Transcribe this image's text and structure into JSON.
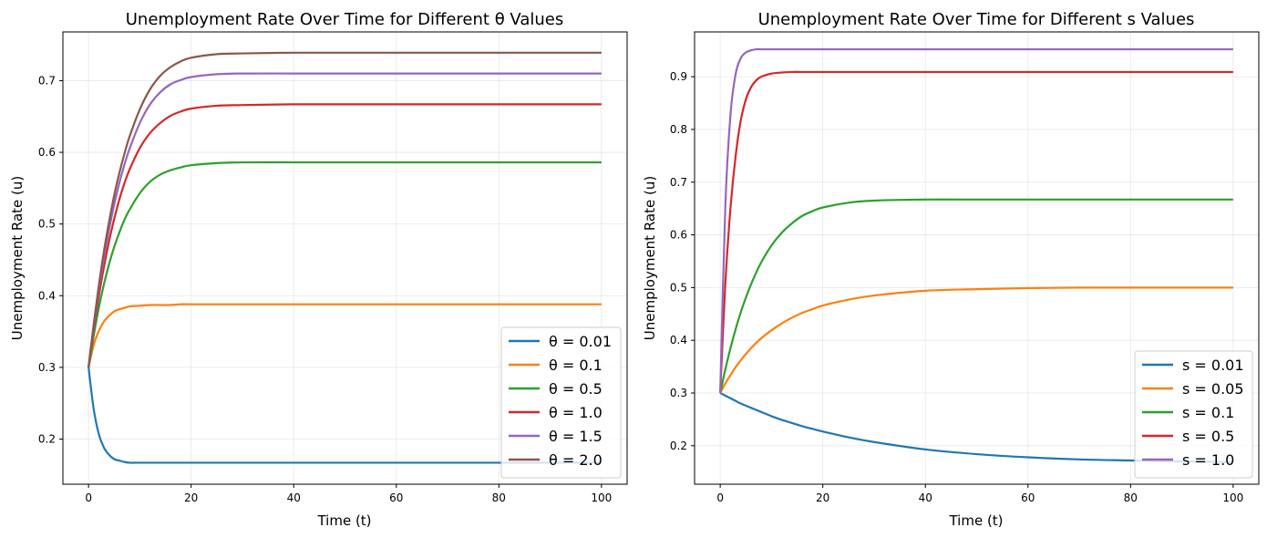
{
  "chart_data": [
    {
      "type": "line",
      "title": "Unemployment Rate Over Time for Different θ Values",
      "xlabel": "Time (t)",
      "ylabel": "Unemployment Rate (u)",
      "xlim": [
        -5,
        105
      ],
      "ylim": [
        0.137,
        0.768
      ],
      "xticks": [
        "0",
        "20",
        "40",
        "60",
        "80",
        "100"
      ],
      "yticks": [
        "0.2",
        "0.3",
        "0.4",
        "0.5",
        "0.6",
        "0.7"
      ],
      "grid": true,
      "legend_position": "lower right",
      "x": [
        0,
        1,
        2,
        3,
        4,
        5,
        6,
        7,
        8,
        10,
        12,
        14,
        16,
        18,
        20,
        25,
        30,
        40,
        50,
        60,
        70,
        80,
        90,
        100
      ],
      "series": [
        {
          "name": "θ = 0.01",
          "color": "#1f77b4",
          "values": [
            0.3,
            0.242,
            0.207,
            0.188,
            0.178,
            0.172,
            0.17,
            0.168,
            0.167,
            0.167,
            0.167,
            0.167,
            0.167,
            0.167,
            0.167,
            0.167,
            0.167,
            0.167,
            0.167,
            0.167,
            0.167,
            0.167,
            0.167,
            0.167
          ]
        },
        {
          "name": "θ = 0.1",
          "color": "#ff7f0e",
          "values": [
            0.3,
            0.331,
            0.351,
            0.364,
            0.372,
            0.378,
            0.381,
            0.383,
            0.385,
            0.386,
            0.387,
            0.387,
            0.387,
            0.388,
            0.388,
            0.388,
            0.388,
            0.388,
            0.388,
            0.388,
            0.388,
            0.388,
            0.388,
            0.388
          ]
        },
        {
          "name": "θ = 0.5",
          "color": "#2ca02c",
          "values": [
            0.3,
            0.344,
            0.383,
            0.416,
            0.444,
            0.468,
            0.488,
            0.506,
            0.52,
            0.543,
            0.559,
            0.569,
            0.575,
            0.579,
            0.582,
            0.585,
            0.586,
            0.586,
            0.586,
            0.586,
            0.586,
            0.586,
            0.586,
            0.586
          ]
        },
        {
          "name": "θ = 1.0",
          "color": "#d62728",
          "values": [
            0.3,
            0.353,
            0.399,
            0.44,
            0.476,
            0.507,
            0.534,
            0.557,
            0.576,
            0.606,
            0.627,
            0.641,
            0.651,
            0.657,
            0.661,
            0.665,
            0.666,
            0.667,
            0.667,
            0.667,
            0.667,
            0.667,
            0.667,
            0.667
          ]
        },
        {
          "name": "θ = 1.5",
          "color": "#9467bd",
          "values": [
            0.3,
            0.357,
            0.408,
            0.453,
            0.492,
            0.527,
            0.557,
            0.583,
            0.605,
            0.641,
            0.667,
            0.684,
            0.695,
            0.701,
            0.705,
            0.709,
            0.71,
            0.71,
            0.71,
            0.71,
            0.71,
            0.71,
            0.71,
            0.71
          ]
        },
        {
          "name": "θ = 2.0",
          "color": "#8c564b",
          "values": [
            0.3,
            0.36,
            0.414,
            0.462,
            0.503,
            0.54,
            0.571,
            0.598,
            0.622,
            0.66,
            0.688,
            0.707,
            0.719,
            0.727,
            0.732,
            0.737,
            0.738,
            0.739,
            0.739,
            0.739,
            0.739,
            0.739,
            0.739,
            0.739
          ]
        }
      ]
    },
    {
      "type": "line",
      "title": "Unemployment Rate Over Time for Different s Values",
      "xlabel": "Time (t)",
      "ylabel": "Unemployment Rate (u)",
      "xlim": [
        -5,
        105
      ],
      "ylim": [
        0.127,
        0.985
      ],
      "xticks": [
        "0",
        "20",
        "40",
        "60",
        "80",
        "100"
      ],
      "yticks": [
        "0.2",
        "0.3",
        "0.4",
        "0.5",
        "0.6",
        "0.7",
        "0.8",
        "0.9"
      ],
      "grid": true,
      "legend_position": "lower right",
      "x": [
        0,
        1,
        2,
        3,
        4,
        5,
        6,
        7,
        8,
        10,
        12,
        14,
        16,
        18,
        20,
        25,
        30,
        40,
        50,
        60,
        70,
        80,
        90,
        100
      ],
      "series": [
        {
          "name": "s = 0.01",
          "color": "#1f77b4",
          "values": [
            0.3,
            0.295,
            0.29,
            0.285,
            0.28,
            0.276,
            0.272,
            0.268,
            0.264,
            0.256,
            0.249,
            0.243,
            0.237,
            0.232,
            0.227,
            0.216,
            0.207,
            0.193,
            0.184,
            0.178,
            0.174,
            0.172,
            0.17,
            0.169
          ]
        },
        {
          "name": "s = 0.05",
          "color": "#ff7f0e",
          "values": [
            0.3,
            0.318,
            0.334,
            0.349,
            0.362,
            0.374,
            0.385,
            0.395,
            0.404,
            0.419,
            0.432,
            0.443,
            0.452,
            0.459,
            0.466,
            0.477,
            0.485,
            0.494,
            0.497,
            0.499,
            0.5,
            0.5,
            0.5,
            0.5
          ]
        },
        {
          "name": "s = 0.1",
          "color": "#2ca02c",
          "values": [
            0.3,
            0.345,
            0.385,
            0.421,
            0.453,
            0.481,
            0.506,
            0.528,
            0.548,
            0.58,
            0.604,
            0.622,
            0.636,
            0.645,
            0.652,
            0.661,
            0.665,
            0.667,
            0.667,
            0.667,
            0.667,
            0.667,
            0.667,
            0.667
          ]
        },
        {
          "name": "s = 0.5",
          "color": "#d62728",
          "values": [
            0.3,
            0.508,
            0.651,
            0.749,
            0.817,
            0.857,
            0.88,
            0.893,
            0.9,
            0.906,
            0.908,
            0.909,
            0.909,
            0.909,
            0.909,
            0.909,
            0.909,
            0.909,
            0.909,
            0.909,
            0.909,
            0.909,
            0.909,
            0.909
          ]
        },
        {
          "name": "s = 1.0",
          "color": "#9467bd",
          "values": [
            0.3,
            0.655,
            0.828,
            0.905,
            0.935,
            0.946,
            0.95,
            0.952,
            0.952,
            0.952,
            0.952,
            0.952,
            0.952,
            0.952,
            0.952,
            0.952,
            0.952,
            0.952,
            0.952,
            0.952,
            0.952,
            0.952,
            0.952,
            0.952
          ]
        }
      ]
    }
  ]
}
